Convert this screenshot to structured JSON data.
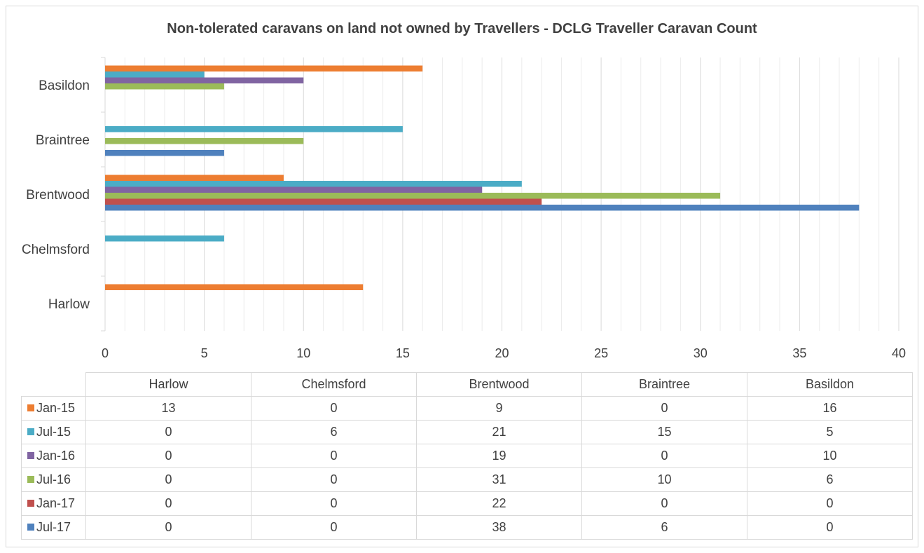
{
  "chart_data": {
    "type": "bar",
    "orientation": "horizontal",
    "title": "Non-tolerated caravans on land not owned by Travellers - DCLG Traveller Caravan Count",
    "categories": [
      "Harlow",
      "Chelmsford",
      "Brentwood",
      "Braintree",
      "Basildon"
    ],
    "series": [
      {
        "name": "Jan-15",
        "color": "#ed7d31",
        "values": [
          13,
          0,
          9,
          0,
          16
        ]
      },
      {
        "name": "Jul-15",
        "color": "#4bacc6",
        "values": [
          0,
          6,
          21,
          15,
          5
        ]
      },
      {
        "name": "Jan-16",
        "color": "#8064a2",
        "values": [
          0,
          0,
          19,
          0,
          10
        ]
      },
      {
        "name": "Jul-16",
        "color": "#9bbb59",
        "values": [
          0,
          0,
          31,
          10,
          6
        ]
      },
      {
        "name": "Jan-17",
        "color": "#c0504d",
        "values": [
          0,
          0,
          22,
          0,
          0
        ]
      },
      {
        "name": "Jul-17",
        "color": "#4f81bd",
        "values": [
          0,
          0,
          38,
          6,
          0
        ]
      }
    ],
    "xlim": [
      0,
      40
    ],
    "xticks": [
      "0",
      "5",
      "10",
      "15",
      "20",
      "25",
      "30",
      "35",
      "40"
    ],
    "grid": true,
    "legend": "data-table"
  }
}
